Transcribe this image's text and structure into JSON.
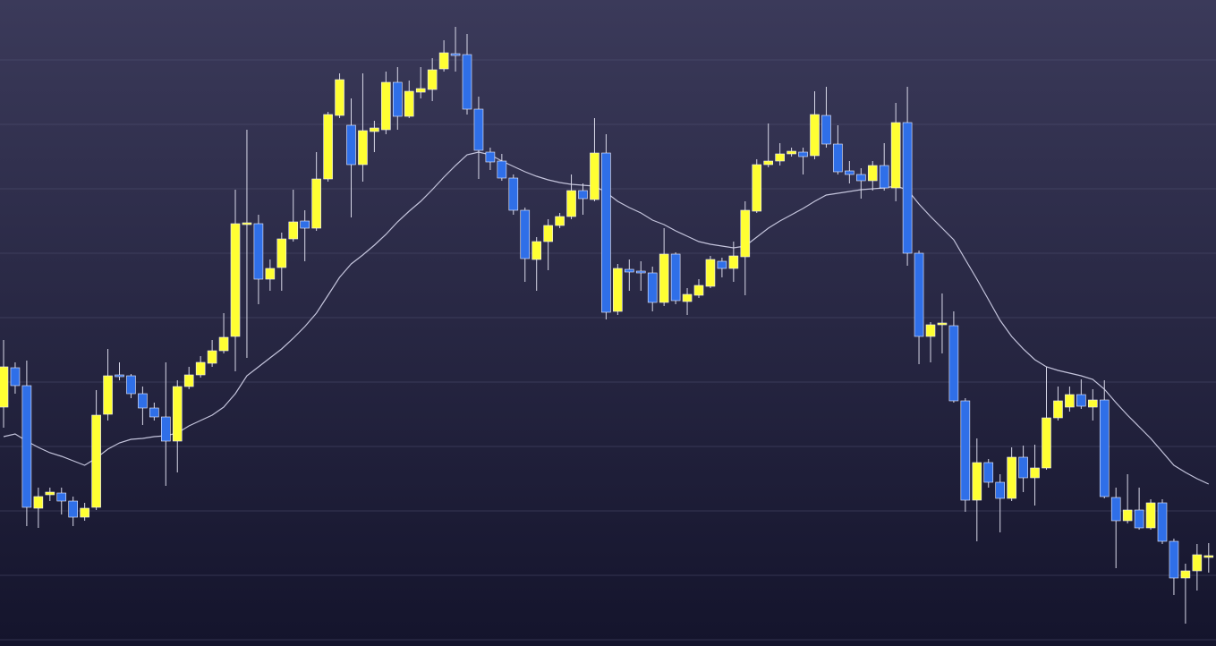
{
  "chart_data": {
    "type": "candlestick",
    "open": [
      267,
      311,
      291,
      154,
      169,
      171,
      162,
      144,
      155,
      259,
      303,
      302,
      282,
      266,
      256,
      229,
      290,
      303,
      316,
      330,
      346,
      471,
      472,
      410,
      423,
      455,
      475,
      467,
      522,
      593,
      582,
      538,
      575,
      577,
      630,
      592,
      619,
      622,
      645,
      662,
      661,
      600,
      552,
      542,
      523,
      487,
      432,
      452,
      470,
      480,
      509,
      499,
      551,
      374,
      421,
      419,
      417,
      384,
      438,
      385,
      392,
      402,
      430,
      422,
      435,
      486,
      538,
      542,
      550,
      552,
      548,
      593,
      561,
      531,
      527,
      520,
      537,
      512,
      585,
      439,
      346,
      359,
      358,
      274,
      163,
      205,
      183,
      165,
      211,
      188,
      199,
      255,
      267,
      281,
      267,
      275,
      166,
      140,
      152,
      132,
      160,
      117,
      76,
      84,
      99
    ],
    "high": [
      342,
      317,
      319,
      177,
      177,
      177,
      167,
      160,
      286,
      332,
      317,
      304,
      290,
      272,
      317,
      297,
      312,
      324,
      342,
      372,
      510,
      577,
      482,
      432,
      462,
      510,
      487,
      552,
      597,
      640,
      612,
      640,
      587,
      642,
      647,
      632,
      647,
      657,
      677,
      692,
      684,
      614,
      557,
      550,
      527,
      490,
      457,
      477,
      484,
      527,
      517,
      590,
      572,
      427,
      432,
      430,
      424,
      467,
      440,
      400,
      410,
      436,
      434,
      452,
      497,
      544,
      584,
      562,
      557,
      557,
      620,
      625,
      582,
      542,
      534,
      542,
      562,
      607,
      625,
      442,
      362,
      394,
      374,
      277,
      232,
      209,
      192,
      222,
      224,
      225,
      312,
      290,
      290,
      298,
      287,
      297,
      177,
      192,
      177,
      164,
      164,
      120,
      92,
      114,
      115
    ],
    "low": [
      244,
      282,
      134,
      132,
      162,
      147,
      134,
      140,
      152,
      252,
      297,
      277,
      247,
      252,
      179,
      194,
      287,
      300,
      312,
      327,
      307,
      322,
      382,
      397,
      397,
      452,
      430,
      464,
      519,
      590,
      479,
      519,
      552,
      572,
      577,
      590,
      612,
      609,
      642,
      642,
      594,
      522,
      532,
      520,
      482,
      407,
      397,
      420,
      467,
      477,
      482,
      497,
      365,
      370,
      397,
      397,
      374,
      380,
      382,
      370,
      389,
      400,
      412,
      407,
      392,
      484,
      535,
      537,
      547,
      527,
      544,
      557,
      527,
      517,
      500,
      509,
      509,
      497,
      425,
      315,
      317,
      327,
      272,
      150,
      117,
      177,
      127,
      162,
      172,
      157,
      197,
      252,
      262,
      265,
      252,
      165,
      87,
      137,
      130,
      130,
      114,
      57,
      25,
      62,
      82
    ],
    "close": [
      312,
      291,
      155,
      167,
      172,
      162,
      144,
      154,
      258,
      302,
      301,
      282,
      266,
      256,
      229,
      290,
      303,
      317,
      330,
      345,
      472,
      473,
      410,
      422,
      455,
      474,
      467,
      522,
      594,
      633,
      538,
      576,
      579,
      630,
      592,
      620,
      623,
      644,
      663,
      660,
      600,
      554,
      541,
      523,
      487,
      433,
      452,
      470,
      480,
      509,
      500,
      551,
      373,
      422,
      418,
      417,
      384,
      438,
      386,
      393,
      403,
      432,
      422,
      436,
      487,
      538,
      542,
      550,
      553,
      547,
      594,
      561,
      530,
      527,
      520,
      537,
      512,
      585,
      439,
      346,
      359,
      361,
      274,
      163,
      205,
      183,
      165,
      211,
      188,
      199,
      255,
      274,
      281,
      268,
      275,
      167,
      140,
      152,
      132,
      160,
      117,
      76,
      84,
      102,
      101
    ],
    "up_color": "#ffff33",
    "down_color": "#2f6fe8",
    "wick_color": "#d8d8e8",
    "line": {
      "color": "#c4c4dc",
      "values": [
        234,
        237,
        229,
        222,
        216,
        212,
        207,
        202,
        210,
        220,
        227,
        231,
        232,
        234,
        235,
        238,
        246,
        252,
        258,
        267,
        282,
        302,
        312,
        322,
        332,
        344,
        357,
        372,
        392,
        412,
        427,
        437,
        448,
        460,
        474,
        486,
        497,
        510,
        524,
        537,
        549,
        552,
        549,
        542,
        536,
        530,
        525,
        521,
        518,
        516,
        515,
        514,
        507,
        497,
        490,
        484,
        476,
        471,
        464,
        458,
        452,
        449,
        447,
        445,
        447,
        457,
        467,
        475,
        482,
        489,
        497,
        504,
        506,
        508,
        510,
        511,
        512,
        514,
        510,
        494,
        480,
        467,
        454,
        432,
        410,
        387,
        364,
        346,
        332,
        320,
        312,
        308,
        305,
        302,
        298,
        287,
        272,
        258,
        245,
        232,
        217,
        202,
        194,
        187,
        181
      ]
    },
    "ylim": [
      0,
      722
    ],
    "yticks": [
      7,
      79,
      151,
      223,
      295,
      367,
      439,
      511,
      583,
      655
    ],
    "grid": true
  }
}
